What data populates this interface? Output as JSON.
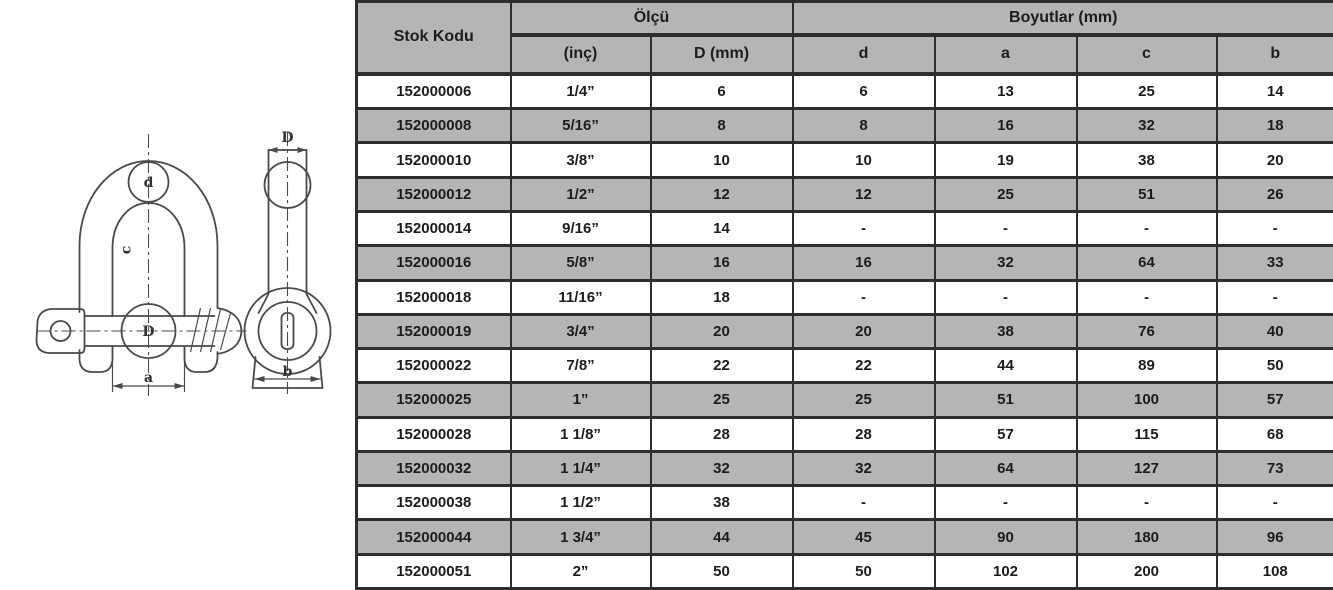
{
  "colors": {
    "table_gray": "#b5b5b7",
    "border": "#2e2e2e",
    "text": "#1c1c1c",
    "drawing_line": "#4a4a4a"
  },
  "diagram": {
    "description": "technical drawing of a dee shackle with screw pin, front and side views",
    "labels": {
      "bow_diameter": "d",
      "inside_length": "c",
      "pin_diameter": "D",
      "inside_width": "a",
      "side_width": "D",
      "eye_width": "b"
    }
  },
  "table": {
    "header": {
      "stok_kodu": "Stok Kodu",
      "olcu": "Ölçü",
      "boyutlar": "Boyutlar (mm)",
      "sub": [
        "(inç)",
        "D (mm)",
        "d",
        "a",
        "c",
        "b"
      ]
    },
    "rows": [
      [
        "152000006",
        "1/4”",
        "6",
        "6",
        "13",
        "25",
        "14"
      ],
      [
        "152000008",
        "5/16”",
        "8",
        "8",
        "16",
        "32",
        "18"
      ],
      [
        "152000010",
        "3/8”",
        "10",
        "10",
        "19",
        "38",
        "20"
      ],
      [
        "152000012",
        "1/2”",
        "12",
        "12",
        "25",
        "51",
        "26"
      ],
      [
        "152000014",
        "9/16”",
        "14",
        "-",
        "-",
        "-",
        "-"
      ],
      [
        "152000016",
        "5/8”",
        "16",
        "16",
        "32",
        "64",
        "33"
      ],
      [
        "152000018",
        "11/16”",
        "18",
        "-",
        "-",
        "-",
        "-"
      ],
      [
        "152000019",
        "3/4”",
        "20",
        "20",
        "38",
        "76",
        "40"
      ],
      [
        "152000022",
        "7/8”",
        "22",
        "22",
        "44",
        "89",
        "50"
      ],
      [
        "152000025",
        "1”",
        "25",
        "25",
        "51",
        "100",
        "57"
      ],
      [
        "152000028",
        "1 1/8”",
        "28",
        "28",
        "57",
        "115",
        "68"
      ],
      [
        "152000032",
        "1 1/4”",
        "32",
        "32",
        "64",
        "127",
        "73"
      ],
      [
        "152000038",
        "1 1/2”",
        "38",
        "-",
        "-",
        "-",
        "-"
      ],
      [
        "152000044",
        "1 3/4”",
        "44",
        "45",
        "90",
        "180",
        "96"
      ],
      [
        "152000051",
        "2”",
        "50",
        "50",
        "102",
        "200",
        "108"
      ]
    ]
  }
}
